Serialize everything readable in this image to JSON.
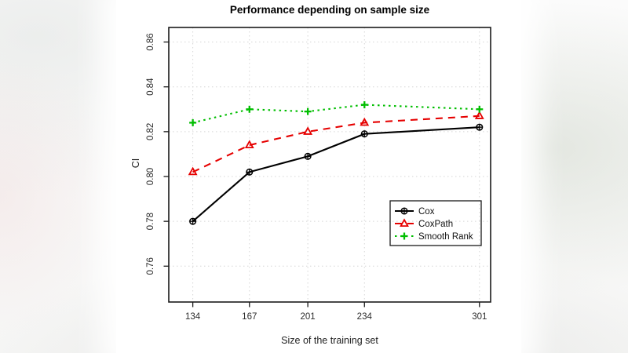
{
  "chart_data": {
    "type": "line",
    "title": "Performance depending on sample size",
    "xlabel": "Size of the training set",
    "ylabel": "CI",
    "x": [
      134,
      167,
      201,
      234,
      301
    ],
    "xtick_labels": [
      "134",
      "167",
      "201",
      "234",
      "301"
    ],
    "yticks": [
      0.76,
      0.78,
      0.8,
      0.82,
      0.84,
      0.86
    ],
    "xlim": [
      120,
      307.5
    ],
    "ylim": [
      0.744,
      0.8665
    ],
    "grid": true,
    "grid_style": "dotted",
    "legend_position": "inside-right-lower",
    "series": [
      {
        "name": "Cox",
        "color": "#000000",
        "line_style": "solid",
        "marker": "circle-plus",
        "values": [
          0.78,
          0.802,
          0.809,
          0.819,
          0.822
        ]
      },
      {
        "name": "CoxPath",
        "color": "#E60000",
        "line_style": "dashed",
        "marker": "triangle",
        "values": [
          0.802,
          0.814,
          0.82,
          0.824,
          0.827
        ]
      },
      {
        "name": "Smooth Rank",
        "color": "#00BE00",
        "line_style": "dotted",
        "marker": "plus",
        "values": [
          0.824,
          0.83,
          0.829,
          0.832,
          0.83
        ]
      }
    ],
    "colors": {
      "grid": "#D6D6D6",
      "axis": "#1A1A1A",
      "tick_text": "#2B2B2B",
      "plot_background": "#FFFFFF"
    }
  }
}
